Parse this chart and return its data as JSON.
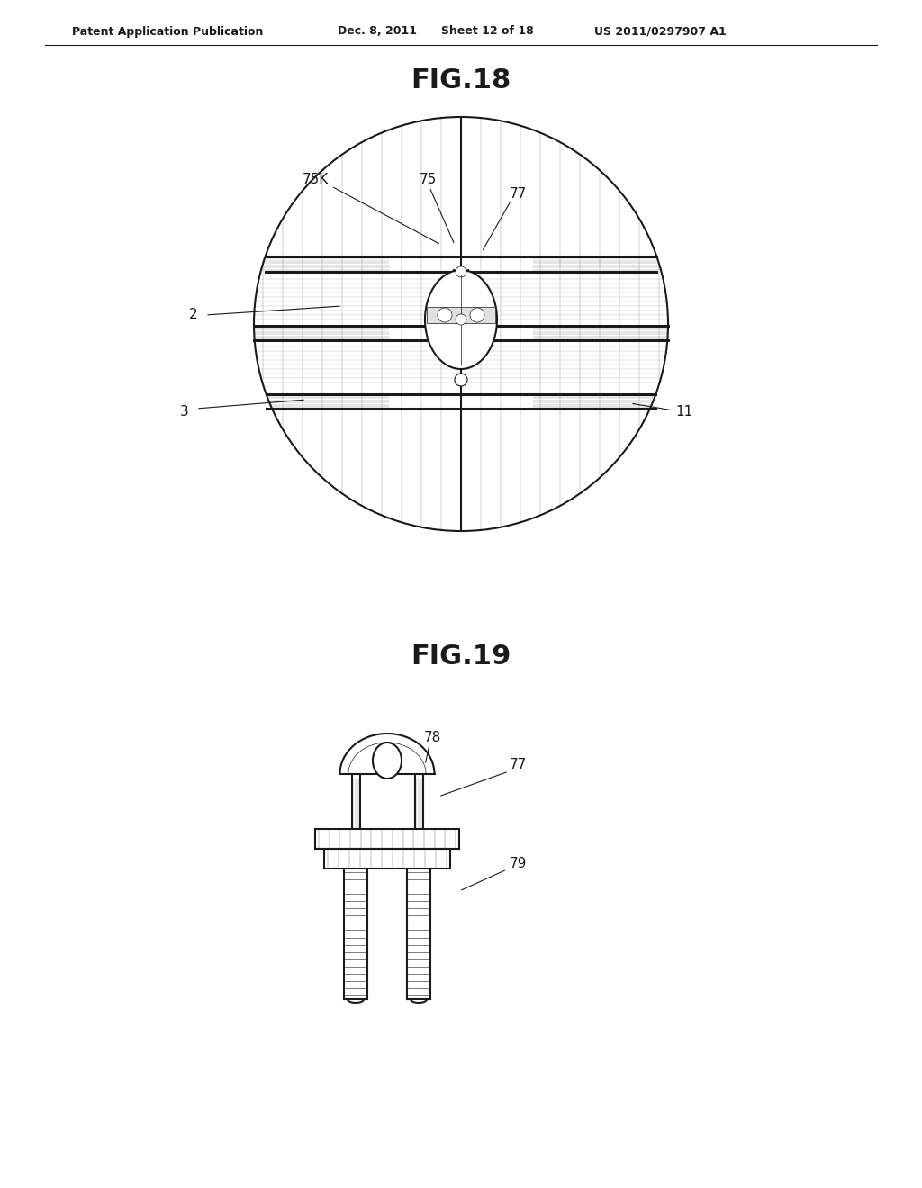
{
  "background_color": "#ffffff",
  "header_text": "Patent Application Publication",
  "header_date": "Dec. 8, 2011",
  "header_sheet": "Sheet 12 of 18",
  "header_patent": "US 2011/0297907 A1",
  "fig18_title": "FIG.18",
  "fig19_title": "FIG.19",
  "line_color": "#1a1a1a",
  "gray1": "#888888",
  "gray2": "#cccccc"
}
